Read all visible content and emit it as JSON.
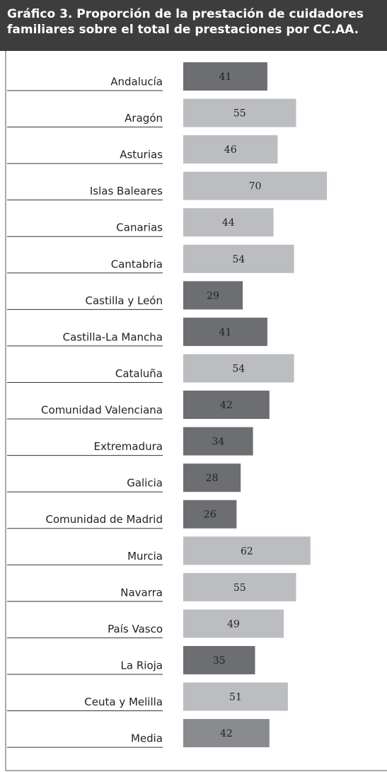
{
  "chart_data": {
    "type": "bar",
    "orientation": "horizontal",
    "title": "Gráfico 3. Proporción de la prestación de cuidadores familiares sobre el total de prestaciones por CC.AA.",
    "categories": [
      "Andalucía",
      "Aragón",
      "Asturias",
      "Islas Baleares",
      "Canarias",
      "Cantabria",
      "Castilla y León",
      "Castilla-La Mancha",
      "Cataluña",
      "Comunidad Valenciana",
      "Extremadura",
      "Galicia",
      "Comunidad de Madrid",
      "Murcia",
      "Navarra",
      "País Vasco",
      "La Rioja",
      "Ceuta y Melilla",
      "Media"
    ],
    "values": [
      41,
      55,
      46,
      70,
      44,
      54,
      29,
      41,
      54,
      42,
      34,
      28,
      26,
      62,
      55,
      49,
      35,
      51,
      42
    ],
    "colors": [
      "#6d6e71",
      "#bcbdc0",
      "#bcbdc0",
      "#bcbdc0",
      "#bcbdc0",
      "#bcbdc0",
      "#6d6e71",
      "#6d6e71",
      "#bcbdc0",
      "#6d6e71",
      "#6d6e71",
      "#6d6e71",
      "#6d6e71",
      "#bcbdc0",
      "#bcbdc0",
      "#bcbdc0",
      "#6d6e71",
      "#bcbdc0",
      "#8a8b8e"
    ],
    "xlim": [
      0,
      100
    ]
  }
}
